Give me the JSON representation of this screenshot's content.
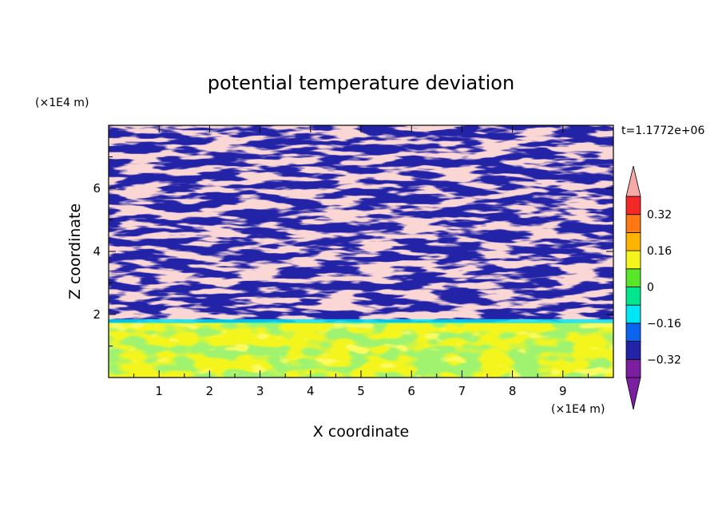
{
  "chart_data": {
    "type": "heatmap",
    "title": "potential temperature deviation",
    "xlabel": "X coordinate",
    "ylabel": "Z coordinate",
    "x_unit": "(×1E4 m)",
    "y_unit": "(×1E4 m)",
    "time_label": "t=1.1772e+06",
    "xlim": [
      0,
      10
    ],
    "ylim": [
      0,
      8
    ],
    "x_ticks": [
      1,
      2,
      3,
      4,
      5,
      6,
      7,
      8,
      9
    ],
    "y_ticks": [
      2,
      4,
      6
    ],
    "colorbar": {
      "levels": [
        -0.4,
        -0.32,
        -0.24,
        -0.16,
        -0.08,
        0,
        0.08,
        0.16,
        0.24,
        0.32,
        0.4
      ],
      "labels": [
        "0.32",
        "0.16",
        "0",
        "−0.16",
        "−0.32"
      ],
      "label_values": [
        0.32,
        0.16,
        0,
        -0.16,
        -0.32
      ],
      "colors_low_to_high": [
        "#7b1fa0",
        "#2323a8",
        "#0a64f0",
        "#00e6f5",
        "#00e68c",
        "#5ae628",
        "#f5f51e",
        "#ffb400",
        "#ff7814",
        "#f52828",
        "#f5aaa8"
      ],
      "extend": "both"
    },
    "lower_region_top_z": 1.75
  }
}
